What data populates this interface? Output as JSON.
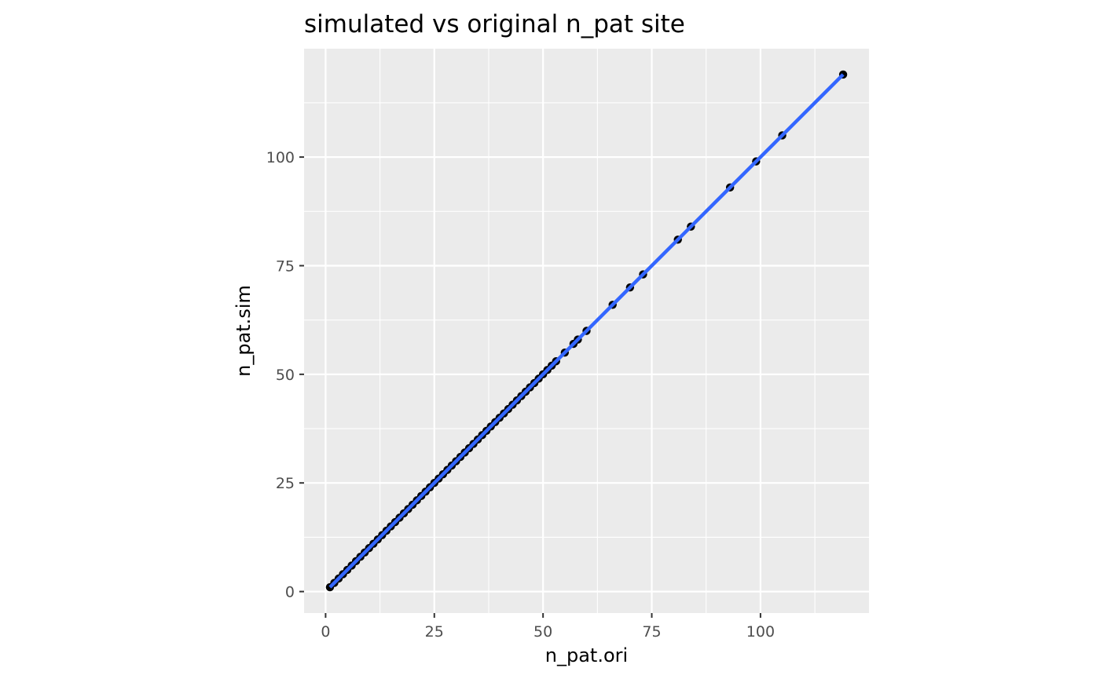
{
  "chart_data": {
    "type": "scatter",
    "title": "simulated vs original n_pat site",
    "xlabel": "n_pat.ori",
    "ylabel": "n_pat.sim",
    "xlim": [
      -4.95,
      124.95
    ],
    "ylim": [
      -4.95,
      124.95
    ],
    "x_ticks": [
      0,
      25,
      50,
      75,
      100
    ],
    "y_ticks": [
      0,
      25,
      50,
      75,
      100
    ],
    "x_tick_labels": [
      "0",
      "25",
      "50",
      "75",
      "100"
    ],
    "y_tick_labels": [
      "0",
      "25",
      "50",
      "75",
      "100"
    ],
    "grid": true,
    "legend": "none",
    "colors": {
      "panel_background": "#EBEBEB",
      "grid": "#FFFFFF",
      "points": "#000000",
      "fit_line": "#3366FF"
    },
    "points": [
      [
        1,
        1
      ],
      [
        2,
        2
      ],
      [
        3,
        3
      ],
      [
        4,
        4
      ],
      [
        5,
        5
      ],
      [
        6,
        6
      ],
      [
        7,
        7
      ],
      [
        8,
        8
      ],
      [
        9,
        9
      ],
      [
        10,
        10
      ],
      [
        11,
        11
      ],
      [
        12,
        12
      ],
      [
        13,
        13
      ],
      [
        14,
        14
      ],
      [
        15,
        15
      ],
      [
        16,
        16
      ],
      [
        17,
        17
      ],
      [
        18,
        18
      ],
      [
        19,
        19
      ],
      [
        20,
        20
      ],
      [
        21,
        21
      ],
      [
        22,
        22
      ],
      [
        23,
        23
      ],
      [
        24,
        24
      ],
      [
        25,
        25
      ],
      [
        26,
        26
      ],
      [
        27,
        27
      ],
      [
        28,
        28
      ],
      [
        29,
        29
      ],
      [
        30,
        30
      ],
      [
        31,
        31
      ],
      [
        32,
        32
      ],
      [
        33,
        33
      ],
      [
        34,
        34
      ],
      [
        35,
        35
      ],
      [
        36,
        36
      ],
      [
        37,
        37
      ],
      [
        38,
        38
      ],
      [
        39,
        39
      ],
      [
        40,
        40
      ],
      [
        41,
        41
      ],
      [
        42,
        42
      ],
      [
        43,
        43
      ],
      [
        44,
        44
      ],
      [
        45,
        45
      ],
      [
        46,
        46
      ],
      [
        47,
        47
      ],
      [
        48,
        48
      ],
      [
        49,
        49
      ],
      [
        50,
        50
      ],
      [
        51,
        51
      ],
      [
        52,
        52
      ],
      [
        53,
        53
      ],
      [
        55,
        55
      ],
      [
        57,
        57
      ],
      [
        58,
        58
      ],
      [
        60,
        60
      ],
      [
        66,
        66
      ],
      [
        70,
        70
      ],
      [
        73,
        73
      ],
      [
        81,
        81
      ],
      [
        84,
        84
      ],
      [
        93,
        93
      ],
      [
        99,
        99
      ],
      [
        105,
        105
      ],
      [
        119,
        119
      ]
    ],
    "fit_line": {
      "x": [
        1,
        119
      ],
      "y": [
        1,
        119
      ]
    }
  }
}
